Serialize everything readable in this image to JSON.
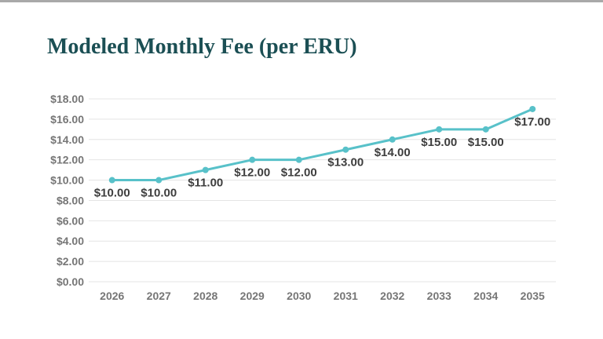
{
  "page": {
    "top_bar_color": "#a9a9a9",
    "background_color": "#ffffff"
  },
  "header": {
    "title": "Modeled Monthly Fee (per ERU)",
    "title_color": "#1b4f54"
  },
  "chart_data": {
    "type": "line",
    "title": "Modeled Monthly Fee (per ERU)",
    "categories": [
      "2026",
      "2027",
      "2028",
      "2029",
      "2030",
      "2031",
      "2032",
      "2033",
      "2034",
      "2035"
    ],
    "series": [
      {
        "name": "Modeled Monthly Fee (per ERU)",
        "values": [
          10,
          10,
          11,
          12,
          12,
          13,
          14,
          15,
          15,
          17
        ],
        "color": "#58c1c9"
      }
    ],
    "data_labels": [
      "$10.00",
      "$10.00",
      "$11.00",
      "$12.00",
      "$12.00",
      "$13.00",
      "$14.00",
      "$15.00",
      "$15.00",
      "$17.00"
    ],
    "xlabel": "",
    "ylabel": "",
    "ylim": [
      0,
      18
    ],
    "y_tick_values": [
      0,
      2,
      4,
      6,
      8,
      10,
      12,
      14,
      16,
      18
    ],
    "y_tick_labels": [
      "$0.00",
      "$2.00",
      "$4.00",
      "$6.00",
      "$8.00",
      "$10.00",
      "$12.00",
      "$14.00",
      "$16.00",
      "$18.00"
    ],
    "grid": "horizontal",
    "gridline_color": "#e4e4e4",
    "tick_label_color": "#767676",
    "data_label_color": "#3e3e3e",
    "legend": "none",
    "marker": "circle"
  }
}
